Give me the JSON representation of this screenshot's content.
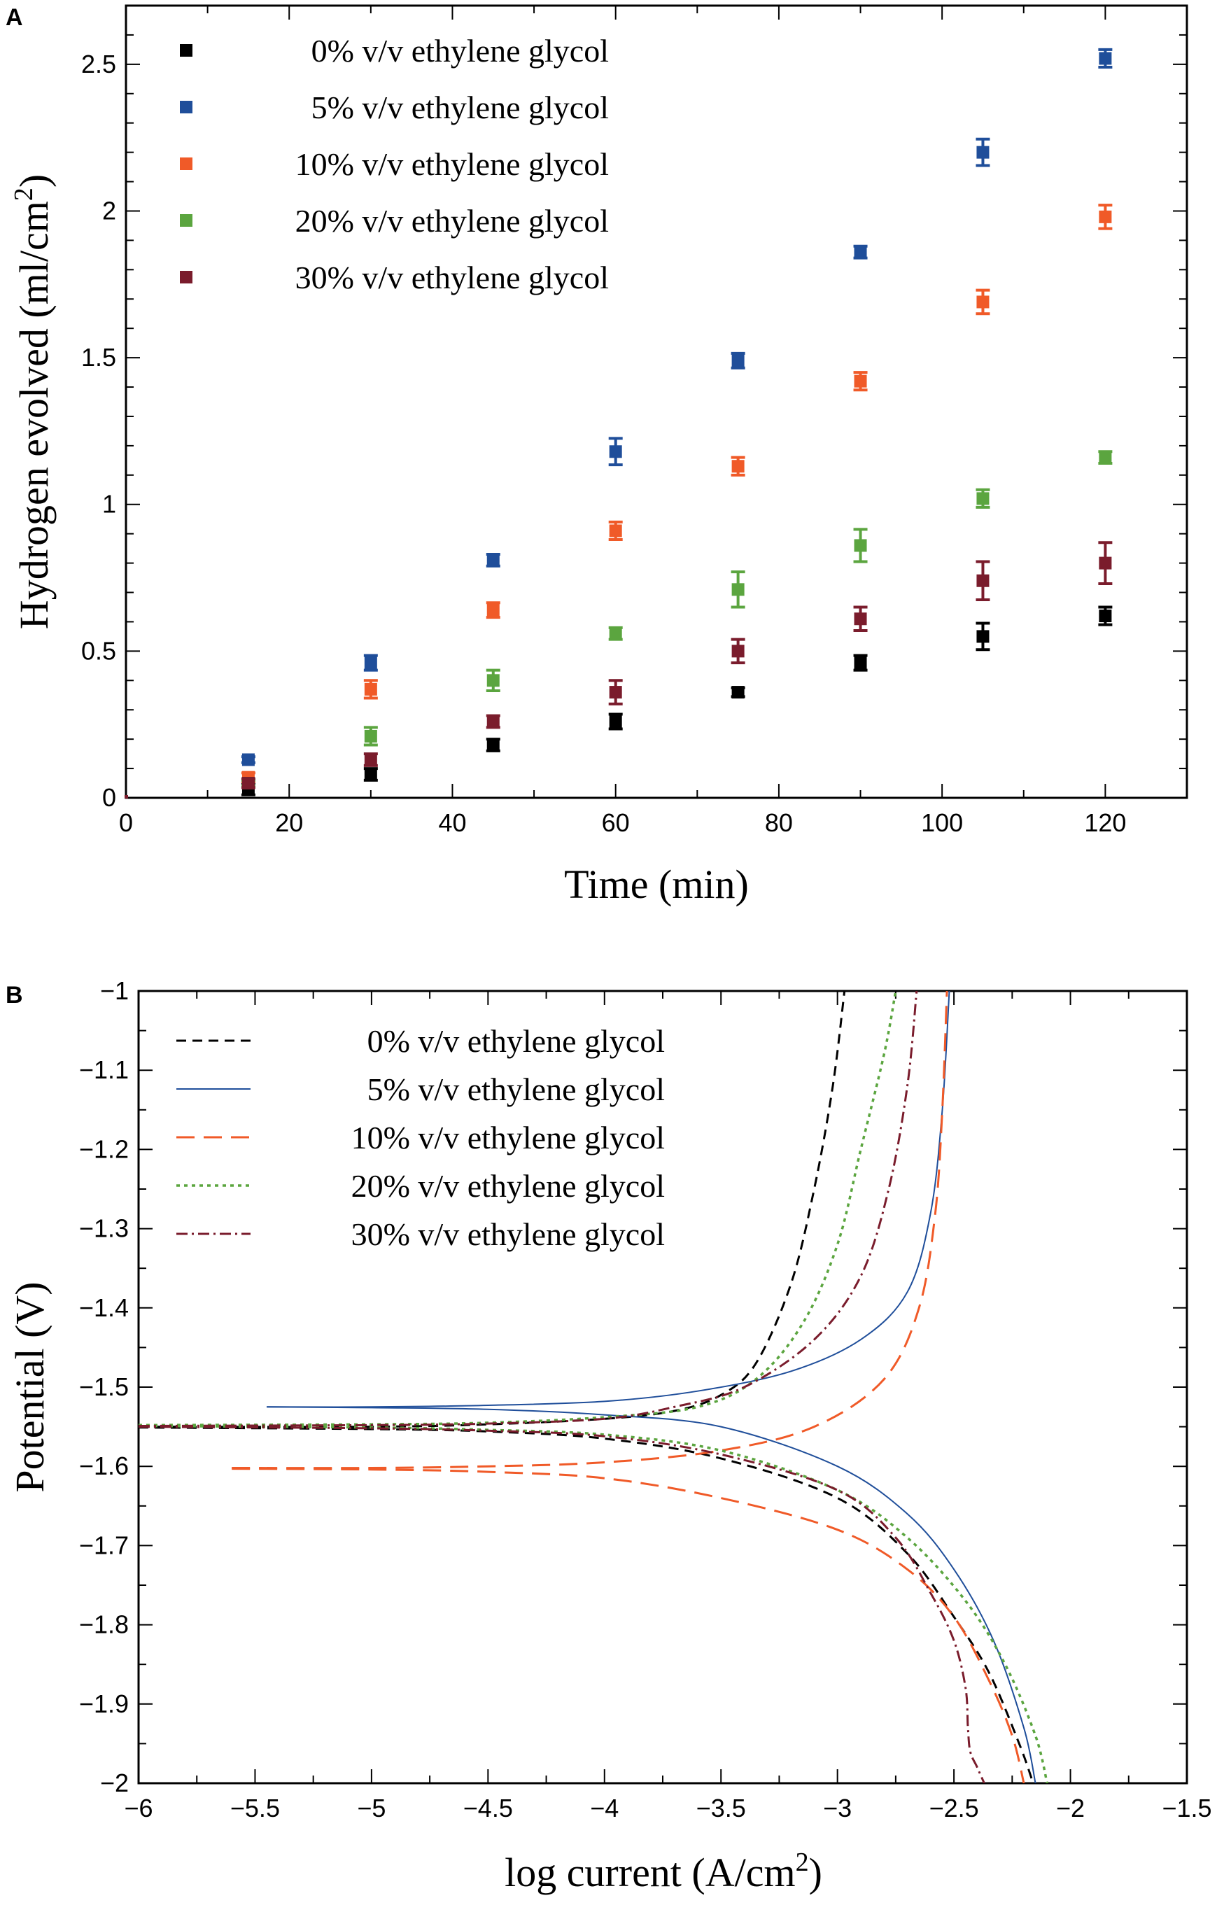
{
  "figure": {
    "panels": [
      "A",
      "B"
    ]
  },
  "chart_data": [
    {
      "panel": "A",
      "type": "scatter",
      "xlabel": "Time (min)",
      "ylabel_main": "Hydrogen evolved (ml/cm",
      "ylabel_sup": "2",
      "ylabel_end": ")",
      "xlim": [
        0,
        130
      ],
      "ylim": [
        0,
        2.7
      ],
      "xticks": [
        {
          "value": 0,
          "label": "0"
        },
        {
          "value": 20,
          "label": "20"
        },
        {
          "value": 40,
          "label": "40"
        },
        {
          "value": 60,
          "label": "60"
        },
        {
          "value": 80,
          "label": "80"
        },
        {
          "value": 100,
          "label": "100"
        },
        {
          "value": 120,
          "label": "120"
        }
      ],
      "yticks": [
        {
          "value": 0,
          "label": "0"
        },
        {
          "value": 0.5,
          "label": "0.5"
        },
        {
          "value": 1,
          "label": "1"
        },
        {
          "value": 1.5,
          "label": "1.5"
        },
        {
          "value": 2,
          "label": "2"
        },
        {
          "value": 2.5,
          "label": "2.5"
        }
      ],
      "x": [
        15,
        30,
        45,
        60,
        75,
        90,
        105,
        120
      ],
      "series": [
        {
          "name": "0% v/v ethylene glycol",
          "color": "#000000",
          "values": [
            0.03,
            0.08,
            0.18,
            0.26,
            0.36,
            0.46,
            0.55,
            0.62
          ],
          "errors": [
            0.02,
            0.02,
            0.02,
            0.025,
            0.015,
            0.025,
            0.045,
            0.03
          ]
        },
        {
          "name": "5% v/v ethylene glycol",
          "color": "#1f4e9a",
          "values": [
            0.13,
            0.46,
            0.81,
            1.18,
            1.49,
            1.86,
            2.2,
            2.52
          ],
          "errors": [
            0.01,
            0.025,
            0.02,
            0.045,
            0.025,
            0.02,
            0.045,
            0.03
          ]
        },
        {
          "name": "10% v/v ethylene glycol",
          "color": "#f05a28",
          "values": [
            0.07,
            0.37,
            0.64,
            0.91,
            1.13,
            1.42,
            1.69,
            1.98
          ],
          "errors": [
            0.015,
            0.03,
            0.025,
            0.03,
            0.03,
            0.03,
            0.04,
            0.04
          ]
        },
        {
          "name": "20% v/v ethylene glycol",
          "color": "#5ba53f",
          "values": [
            0.05,
            0.21,
            0.4,
            0.56,
            0.71,
            0.86,
            1.02,
            1.16
          ],
          "errors": [
            0.01,
            0.03,
            0.035,
            0.02,
            0.06,
            0.055,
            0.03,
            0.02
          ]
        },
        {
          "name": "30% v/v ethylene glycol",
          "color": "#7a1c2c",
          "values": [
            0.05,
            0.13,
            0.26,
            0.36,
            0.5,
            0.61,
            0.74,
            0.8
          ],
          "errors": [
            0.015,
            0.02,
            0.02,
            0.04,
            0.04,
            0.04,
            0.065,
            0.07
          ]
        }
      ]
    },
    {
      "panel": "B",
      "type": "line",
      "xlabel_main": "log current (A/cm",
      "xlabel_sup": "2",
      "xlabel_end": ")",
      "ylabel": "Potential (V)",
      "xlim": [
        -6,
        -1.5
      ],
      "ylim": [
        -2,
        -1
      ],
      "xticks": [
        {
          "value": -6,
          "label": "−6"
        },
        {
          "value": -5.5,
          "label": "−5.5"
        },
        {
          "value": -5,
          "label": "−5"
        },
        {
          "value": -4.5,
          "label": "−4.5"
        },
        {
          "value": -4,
          "label": "−4"
        },
        {
          "value": -3.5,
          "label": "−3.5"
        },
        {
          "value": -3,
          "label": "−3"
        },
        {
          "value": -2.5,
          "label": "−2.5"
        },
        {
          "value": -2,
          "label": "−2"
        },
        {
          "value": -1.5,
          "label": "−1.5"
        }
      ],
      "yticks": [
        {
          "value": -1,
          "label": "−1"
        },
        {
          "value": -1.1,
          "label": "−1.1"
        },
        {
          "value": -1.2,
          "label": "−1.2"
        },
        {
          "value": -1.3,
          "label": "−1.3"
        },
        {
          "value": -1.4,
          "label": "−1.4"
        },
        {
          "value": -1.5,
          "label": "−1.5"
        },
        {
          "value": -1.6,
          "label": "−1.6"
        },
        {
          "value": -1.7,
          "label": "−1.7"
        },
        {
          "value": -1.8,
          "label": "−1.8"
        },
        {
          "value": -1.9,
          "label": "−1.9"
        },
        {
          "value": -2,
          "label": "−2"
        }
      ],
      "series": [
        {
          "name": "0% v/v ethylene glycol",
          "color": "#000000",
          "dash": "14,9",
          "width": 3,
          "anodic": [
            [
              -6,
              -1.55
            ],
            [
              -5,
              -1.55
            ],
            [
              -4.5,
              -1.547
            ],
            [
              -4,
              -1.54
            ],
            [
              -3.7,
              -1.53
            ],
            [
              -3.5,
              -1.51
            ],
            [
              -3.35,
              -1.47
            ],
            [
              -3.2,
              -1.37
            ],
            [
              -3.1,
              -1.25
            ],
            [
              -3.02,
              -1.12
            ],
            [
              -2.97,
              -1.0
            ]
          ],
          "cathodic": [
            [
              -6,
              -1.551
            ],
            [
              -5,
              -1.553
            ],
            [
              -4.5,
              -1.556
            ],
            [
              -4,
              -1.565
            ],
            [
              -3.5,
              -1.59
            ],
            [
              -3,
              -1.64
            ],
            [
              -2.7,
              -1.71
            ],
            [
              -2.5,
              -1.79
            ],
            [
              -2.35,
              -1.86
            ],
            [
              -2.22,
              -1.95
            ],
            [
              -2.16,
              -2.0
            ]
          ]
        },
        {
          "name": "5% v/v ethylene glycol",
          "color": "#1f4e9a",
          "dash": "",
          "width": 2,
          "anodic": [
            [
              -5.45,
              -1.525
            ],
            [
              -5,
              -1.525
            ],
            [
              -4.5,
              -1.523
            ],
            [
              -4,
              -1.518
            ],
            [
              -3.6,
              -1.505
            ],
            [
              -3.2,
              -1.48
            ],
            [
              -2.9,
              -1.44
            ],
            [
              -2.7,
              -1.38
            ],
            [
              -2.6,
              -1.28
            ],
            [
              -2.55,
              -1.15
            ],
            [
              -2.52,
              -1.0
            ]
          ],
          "cathodic": [
            [
              -5.45,
              -1.525
            ],
            [
              -5,
              -1.526
            ],
            [
              -4.5,
              -1.528
            ],
            [
              -4,
              -1.535
            ],
            [
              -3.5,
              -1.55
            ],
            [
              -3,
              -1.6
            ],
            [
              -2.7,
              -1.66
            ],
            [
              -2.5,
              -1.73
            ],
            [
              -2.33,
              -1.82
            ],
            [
              -2.2,
              -1.93
            ],
            [
              -2.15,
              -2.0
            ]
          ]
        },
        {
          "name": "10% v/v ethylene glycol",
          "color": "#f05a28",
          "dash": "26,13",
          "width": 3,
          "anodic": [
            [
              -5.6,
              -1.602
            ],
            [
              -5,
              -1.602
            ],
            [
              -4.5,
              -1.6
            ],
            [
              -4,
              -1.595
            ],
            [
              -3.5,
              -1.58
            ],
            [
              -3.1,
              -1.55
            ],
            [
              -2.8,
              -1.49
            ],
            [
              -2.65,
              -1.4
            ],
            [
              -2.58,
              -1.28
            ],
            [
              -2.55,
              -1.15
            ],
            [
              -2.53,
              -1.0
            ]
          ],
          "cathodic": [
            [
              -5.6,
              -1.603
            ],
            [
              -5,
              -1.604
            ],
            [
              -4.5,
              -1.607
            ],
            [
              -4,
              -1.615
            ],
            [
              -3.5,
              -1.64
            ],
            [
              -3,
              -1.68
            ],
            [
              -2.7,
              -1.73
            ],
            [
              -2.5,
              -1.79
            ],
            [
              -2.35,
              -1.87
            ],
            [
              -2.25,
              -1.94
            ],
            [
              -2.2,
              -2.0
            ]
          ]
        },
        {
          "name": "20% v/v ethylene glycol",
          "color": "#5ba53f",
          "dash": "5,6",
          "width": 3.5,
          "anodic": [
            [
              -6,
              -1.548
            ],
            [
              -5,
              -1.547
            ],
            [
              -4.5,
              -1.545
            ],
            [
              -4,
              -1.538
            ],
            [
              -3.6,
              -1.525
            ],
            [
              -3.35,
              -1.49
            ],
            [
              -3.15,
              -1.42
            ],
            [
              -3,
              -1.32
            ],
            [
              -2.9,
              -1.2
            ],
            [
              -2.8,
              -1.08
            ],
            [
              -2.75,
              -1.0
            ]
          ],
          "cathodic": [
            [
              -6,
              -1.549
            ],
            [
              -5,
              -1.551
            ],
            [
              -4.5,
              -1.554
            ],
            [
              -4,
              -1.56
            ],
            [
              -3.5,
              -1.58
            ],
            [
              -3,
              -1.63
            ],
            [
              -2.7,
              -1.69
            ],
            [
              -2.45,
              -1.77
            ],
            [
              -2.28,
              -1.85
            ],
            [
              -2.15,
              -1.94
            ],
            [
              -2.1,
              -2.0
            ]
          ]
        },
        {
          "name": "30% v/v ethylene glycol",
          "color": "#7a1c2c",
          "dash": "16,6,3,6",
          "width": 3,
          "anodic": [
            [
              -6,
              -1.549
            ],
            [
              -5,
              -1.548
            ],
            [
              -4.5,
              -1.546
            ],
            [
              -4,
              -1.54
            ],
            [
              -3.7,
              -1.525
            ],
            [
              -3.4,
              -1.5
            ],
            [
              -3.1,
              -1.44
            ],
            [
              -2.9,
              -1.36
            ],
            [
              -2.78,
              -1.25
            ],
            [
              -2.7,
              -1.12
            ],
            [
              -2.66,
              -1.0
            ]
          ],
          "cathodic": [
            [
              -6,
              -1.55
            ],
            [
              -5,
              -1.552
            ],
            [
              -4.5,
              -1.555
            ],
            [
              -4,
              -1.562
            ],
            [
              -3.5,
              -1.585
            ],
            [
              -3,
              -1.63
            ],
            [
              -2.75,
              -1.69
            ],
            [
              -2.6,
              -1.76
            ],
            [
              -2.5,
              -1.82
            ],
            [
              -2.45,
              -1.88
            ],
            [
              -2.44,
              -1.93
            ],
            [
              -2.43,
              -1.96
            ],
            [
              -2.4,
              -1.98
            ],
            [
              -2.37,
              -2.0
            ]
          ]
        }
      ]
    }
  ]
}
